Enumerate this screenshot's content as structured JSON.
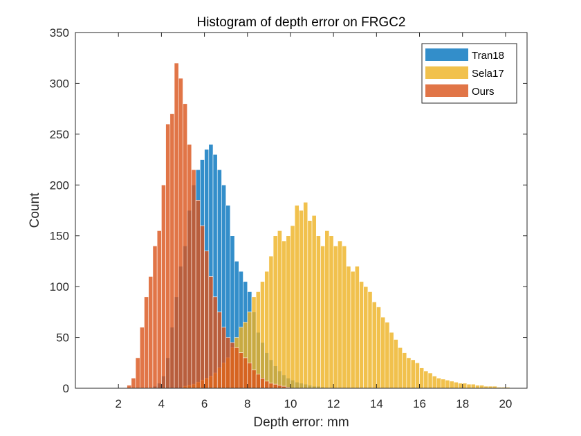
{
  "chart_data": {
    "type": "bar",
    "title": "Histogram of depth error on FRGC2",
    "xlabel": "Depth error: mm",
    "ylabel": "Count",
    "xlim": [
      0,
      21
    ],
    "ylim": [
      0,
      350
    ],
    "xticks": [
      2,
      4,
      6,
      8,
      10,
      12,
      14,
      16,
      18,
      20
    ],
    "yticks": [
      0,
      50,
      100,
      150,
      200,
      250,
      300,
      350
    ],
    "bin_width": 0.2,
    "legend_position": "top-right",
    "grid": false,
    "series": [
      {
        "name": "Tran18",
        "color": "#0072BD",
        "opacity": 0.8,
        "x": [
          3.6,
          3.8,
          4.0,
          4.2,
          4.4,
          4.6,
          4.8,
          5.0,
          5.2,
          5.4,
          5.6,
          5.8,
          6.0,
          6.2,
          6.4,
          6.6,
          6.8,
          7.0,
          7.2,
          7.4,
          7.6,
          7.8,
          8.0,
          8.2,
          8.4,
          8.6,
          8.8,
          9.0,
          9.2,
          9.4,
          9.6,
          9.8,
          10.0,
          10.2,
          10.4,
          10.6,
          10.8,
          11.0,
          11.2,
          11.4
        ],
        "values": [
          2,
          5,
          12,
          30,
          60,
          90,
          120,
          140,
          175,
          200,
          215,
          225,
          235,
          240,
          230,
          215,
          200,
          180,
          150,
          125,
          115,
          105,
          95,
          75,
          55,
          45,
          35,
          28,
          22,
          17,
          13,
          10,
          8,
          6,
          5,
          4,
          3,
          2,
          2,
          1
        ]
      },
      {
        "name": "Sela17",
        "color": "#EDB120",
        "opacity": 0.8,
        "x": [
          5.0,
          5.2,
          5.4,
          5.6,
          5.8,
          6.0,
          6.2,
          6.4,
          6.6,
          6.8,
          7.0,
          7.2,
          7.4,
          7.6,
          7.8,
          8.0,
          8.2,
          8.4,
          8.6,
          8.8,
          9.0,
          9.2,
          9.4,
          9.6,
          9.8,
          10.0,
          10.2,
          10.4,
          10.6,
          10.8,
          11.0,
          11.2,
          11.4,
          11.6,
          11.8,
          12.0,
          12.2,
          12.4,
          12.6,
          12.8,
          13.0,
          13.2,
          13.4,
          13.6,
          13.8,
          14.0,
          14.2,
          14.4,
          14.6,
          14.8,
          15.0,
          15.2,
          15.4,
          15.6,
          15.8,
          16.0,
          16.2,
          16.4,
          16.6,
          16.8,
          17.0,
          17.2,
          17.4,
          17.6,
          17.8,
          18.0,
          18.2,
          18.4,
          18.6,
          18.8,
          19.0,
          19.2,
          19.4,
          19.6,
          19.8,
          20.0
        ],
        "values": [
          2,
          3,
          4,
          6,
          8,
          10,
          12,
          15,
          20,
          25,
          30,
          40,
          50,
          60,
          65,
          75,
          90,
          95,
          105,
          115,
          130,
          150,
          155,
          145,
          150,
          160,
          180,
          175,
          183,
          165,
          170,
          150,
          140,
          155,
          150,
          140,
          145,
          140,
          120,
          115,
          120,
          105,
          100,
          95,
          85,
          80,
          70,
          65,
          55,
          48,
          40,
          35,
          30,
          28,
          25,
          20,
          17,
          15,
          12,
          10,
          9,
          8,
          7,
          6,
          5,
          5,
          4,
          4,
          3,
          3,
          2,
          2,
          2,
          1,
          1,
          1
        ]
      },
      {
        "name": "Ours",
        "color": "#D95319",
        "opacity": 0.8,
        "x": [
          2.4,
          2.6,
          2.8,
          3.0,
          3.2,
          3.4,
          3.6,
          3.8,
          4.0,
          4.2,
          4.4,
          4.6,
          4.8,
          5.0,
          5.2,
          5.4,
          5.6,
          5.8,
          6.0,
          6.2,
          6.4,
          6.6,
          6.8,
          7.0,
          7.2,
          7.4,
          7.6,
          7.8,
          8.0,
          8.2,
          8.4,
          8.6,
          8.8,
          9.0,
          9.2,
          9.4,
          9.6,
          9.8
        ],
        "values": [
          3,
          10,
          30,
          60,
          90,
          110,
          140,
          155,
          200,
          260,
          270,
          320,
          305,
          280,
          240,
          215,
          185,
          160,
          135,
          110,
          90,
          75,
          60,
          50,
          45,
          40,
          35,
          30,
          25,
          18,
          14,
          10,
          7,
          5,
          4,
          3,
          2,
          1
        ]
      }
    ]
  }
}
